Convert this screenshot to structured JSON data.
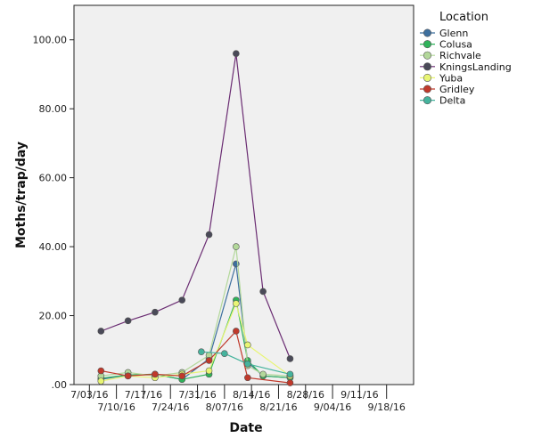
{
  "chart_data": {
    "type": "line",
    "xlabel": "Date",
    "ylabel": "Moths/trap/day",
    "ylim": [
      0,
      110
    ],
    "y_ticks": [
      0,
      20,
      40,
      60,
      80,
      100
    ],
    "y_tick_labels": [
      ".00",
      "20.00",
      "40.00",
      "60.00",
      "80.00",
      "100.00"
    ],
    "xlim": [
      "2016-06-29",
      "2016-09-25"
    ],
    "x_ticks": [
      "2016-07-03",
      "2016-07-10",
      "2016-07-17",
      "2016-07-24",
      "2016-07-31",
      "2016-08-07",
      "2016-08-14",
      "2016-08-21",
      "2016-08-28",
      "2016-09-04",
      "2016-09-11",
      "2016-09-18"
    ],
    "x_tick_labels": [
      "7/03/16",
      "7/10/16",
      "7/17/16",
      "7/24/16",
      "7/31/16",
      "8/07/16",
      "8/14/16",
      "8/21/16",
      "8/28/16",
      "9/04/16",
      "9/11/16",
      "9/18/16"
    ],
    "grid": false,
    "background": "#f0f0f0",
    "legend": {
      "title": "Location",
      "position": "right"
    },
    "series": [
      {
        "name": "Glenn",
        "color": "#3d6f9e",
        "points": [
          [
            "2016-07-06",
            1.5
          ],
          [
            "2016-07-13",
            2.8
          ],
          [
            "2016-07-20",
            3.0
          ],
          [
            "2016-07-27",
            1.5
          ],
          [
            "2016-08-03",
            7.5
          ],
          [
            "2016-08-10",
            35.0
          ],
          [
            "2016-08-13",
            6.5
          ],
          [
            "2016-08-17",
            2.5
          ],
          [
            "2016-08-24",
            2.0
          ]
        ]
      },
      {
        "name": "Colusa",
        "color": "#2fb35a",
        "points": [
          [
            "2016-07-06",
            1.8
          ],
          [
            "2016-07-13",
            2.8
          ],
          [
            "2016-07-20",
            3.0
          ],
          [
            "2016-07-27",
            1.5
          ],
          [
            "2016-08-03",
            3.0
          ],
          [
            "2016-08-10",
            24.5
          ],
          [
            "2016-08-13",
            7.0
          ],
          [
            "2016-08-17",
            2.5
          ],
          [
            "2016-08-24",
            2.0
          ]
        ]
      },
      {
        "name": "Richvale",
        "color": "#b3d89a",
        "points": [
          [
            "2016-07-06",
            2.5
          ],
          [
            "2016-07-13",
            3.5
          ],
          [
            "2016-07-20",
            2.5
          ],
          [
            "2016-07-27",
            3.5
          ],
          [
            "2016-08-03",
            8.5
          ],
          [
            "2016-08-10",
            40.0
          ],
          [
            "2016-08-13",
            5.5
          ],
          [
            "2016-08-17",
            3.0
          ],
          [
            "2016-08-24",
            2.5
          ]
        ]
      },
      {
        "name": "KningsLanding",
        "color": "#6a2c72",
        "points": [
          [
            "2016-07-06",
            15.5
          ],
          [
            "2016-07-13",
            18.5
          ],
          [
            "2016-07-20",
            21.0
          ],
          [
            "2016-07-27",
            24.5
          ],
          [
            "2016-08-03",
            43.5
          ],
          [
            "2016-08-10",
            96.0
          ],
          [
            "2016-08-17",
            27.0
          ],
          [
            "2016-08-24",
            7.5
          ]
        ]
      },
      {
        "name": "Yuba",
        "color": "#e8f573",
        "points": [
          [
            "2016-07-06",
            1.0
          ],
          [
            "2016-07-13",
            2.5
          ],
          [
            "2016-07-20",
            2.0
          ],
          [
            "2016-07-27",
            3.0
          ],
          [
            "2016-08-03",
            4.0
          ],
          [
            "2016-08-10",
            23.5
          ],
          [
            "2016-08-13",
            11.5
          ],
          [
            "2016-08-24",
            2.5
          ]
        ]
      },
      {
        "name": "Gridley",
        "color": "#c0392b",
        "points": [
          [
            "2016-07-06",
            4.0
          ],
          [
            "2016-07-13",
            2.5
          ],
          [
            "2016-07-20",
            3.0
          ],
          [
            "2016-07-27",
            2.5
          ],
          [
            "2016-08-03",
            7.0
          ],
          [
            "2016-08-10",
            15.5
          ],
          [
            "2016-08-13",
            2.0
          ],
          [
            "2016-08-24",
            0.5
          ]
        ]
      },
      {
        "name": "Delta",
        "color": "#45b39d",
        "points": [
          [
            "2016-08-01",
            9.5
          ],
          [
            "2016-08-07",
            9.0
          ],
          [
            "2016-08-13",
            6.0
          ],
          [
            "2016-08-24",
            3.0
          ]
        ]
      }
    ]
  }
}
